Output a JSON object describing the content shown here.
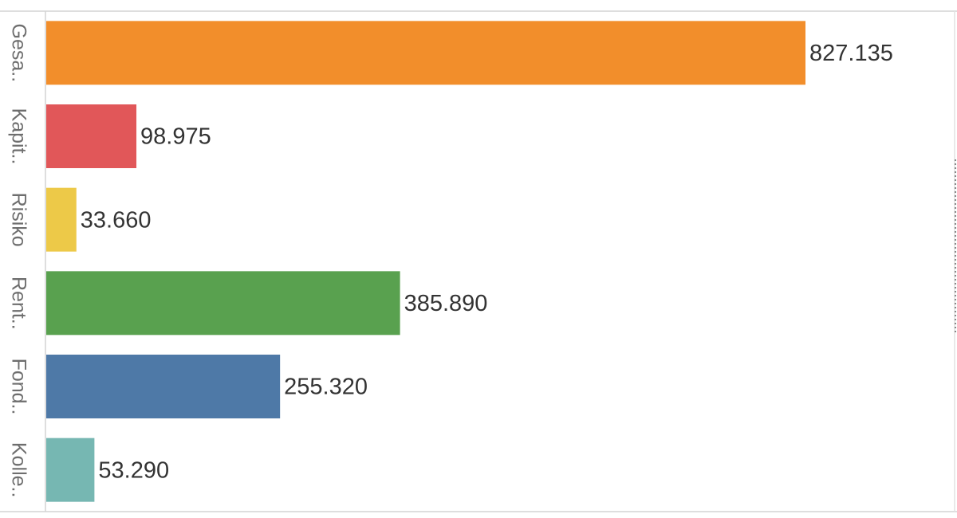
{
  "chart_data": {
    "type": "bar",
    "orientation": "horizontal",
    "categories": [
      "Gesa..",
      "Kapit..",
      "Risiko",
      "Rent..",
      "Fond..",
      "Kolle.."
    ],
    "values": [
      827135,
      98975,
      33660,
      385890,
      255320,
      53290
    ],
    "value_labels": [
      "827.135",
      "98.975",
      "33.660",
      "385.890",
      "255.320",
      "53.290"
    ],
    "colors": [
      "#f28e2b",
      "#e15759",
      "#edc948",
      "#59a14f",
      "#4e79a7",
      "#76b7b2"
    ]
  }
}
